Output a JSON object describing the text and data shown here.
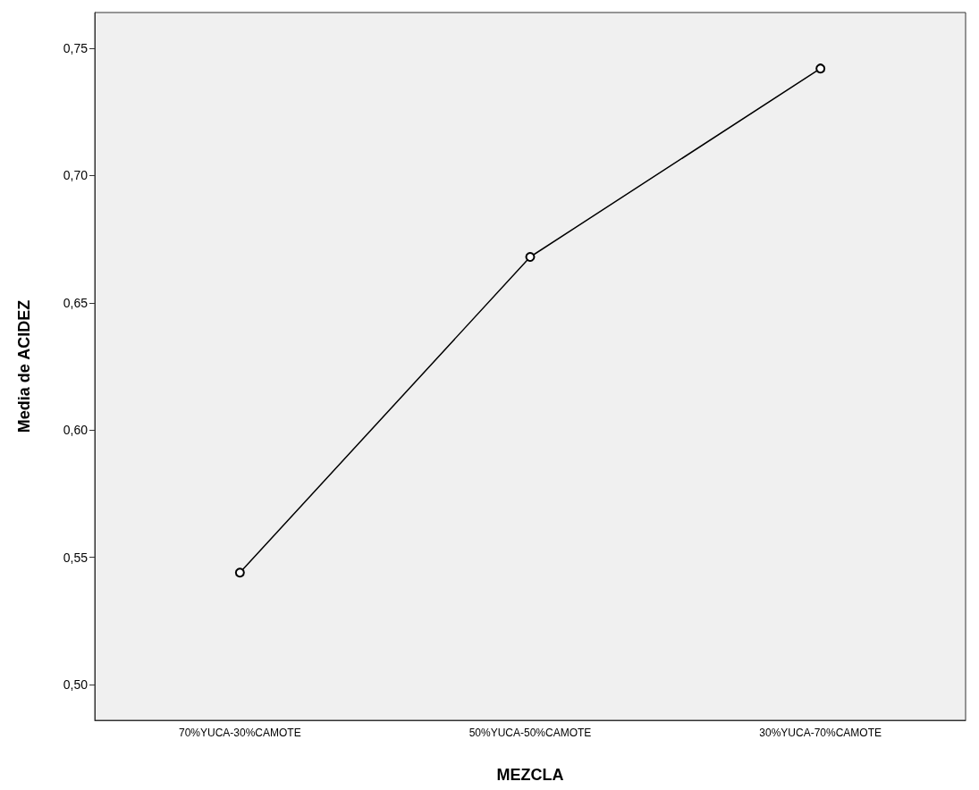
{
  "chart_data": {
    "type": "line",
    "xlabel": "MEZCLA",
    "ylabel": "Media de ACIDEZ",
    "categories": [
      "70%YUCA-30%CAMOTE",
      "50%YUCA-50%CAMOTE",
      "30%YUCA-70%CAMOTE"
    ],
    "series": [
      {
        "color": "#000000",
        "values": [
          0.544,
          0.668,
          0.742
        ]
      }
    ],
    "ylim": [
      0.486,
      0.764
    ],
    "yticks": [
      {
        "value": 0.5,
        "label": "0,50"
      },
      {
        "value": 0.55,
        "label": "0,55"
      },
      {
        "value": 0.6,
        "label": "0,60"
      },
      {
        "value": 0.65,
        "label": "0,65"
      },
      {
        "value": 0.7,
        "label": "0,70"
      },
      {
        "value": 0.75,
        "label": "0,75"
      }
    ],
    "grid": false,
    "marker": "circle",
    "line_style": "solid"
  }
}
